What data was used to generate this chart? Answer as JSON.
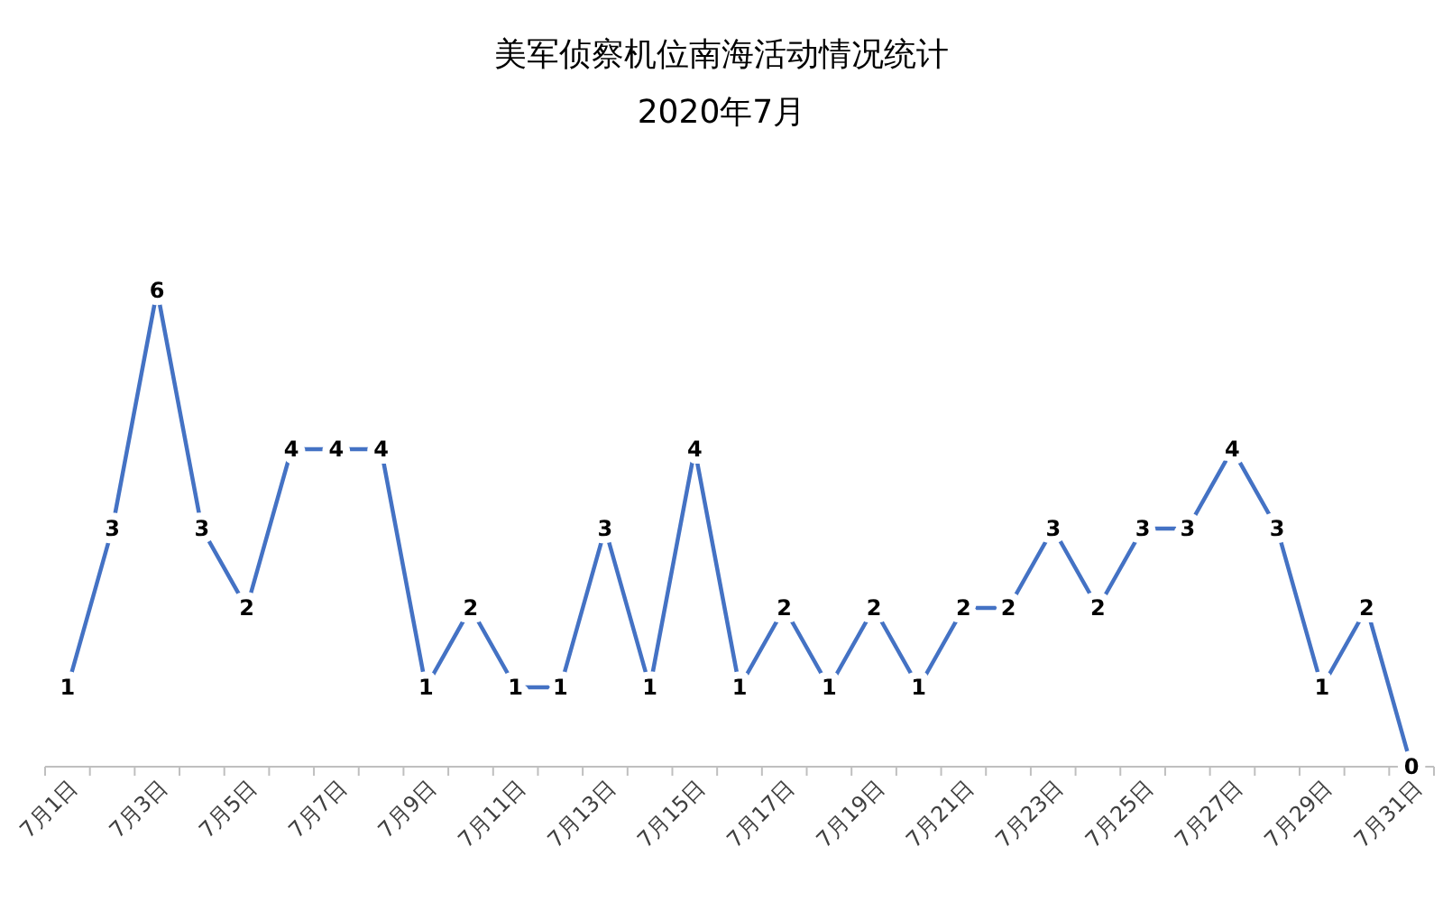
{
  "chart_data": {
    "type": "line",
    "title": "美军侦察机位南海活动情况统计",
    "subtitle": "2020年7月",
    "categories": [
      "7月1日",
      null,
      "7月3日",
      null,
      "7月5日",
      null,
      "7月7日",
      null,
      "7月9日",
      null,
      "7月11日",
      null,
      "7月13日",
      null,
      "7月15日",
      null,
      "7月17日",
      null,
      "7月19日",
      null,
      "7月21日",
      null,
      "7月23日",
      null,
      "7月25日",
      null,
      "7月27日",
      null,
      "7月29日",
      null,
      "7月31日"
    ],
    "values": [
      1,
      3,
      6,
      3,
      2,
      4,
      4,
      4,
      1,
      2,
      1,
      1,
      3,
      1,
      4,
      1,
      2,
      1,
      2,
      1,
      2,
      2,
      3,
      2,
      3,
      3,
      4,
      3,
      1,
      2,
      0
    ],
    "color": "#4472c4",
    "data_labels": true,
    "line_style": "solid"
  }
}
